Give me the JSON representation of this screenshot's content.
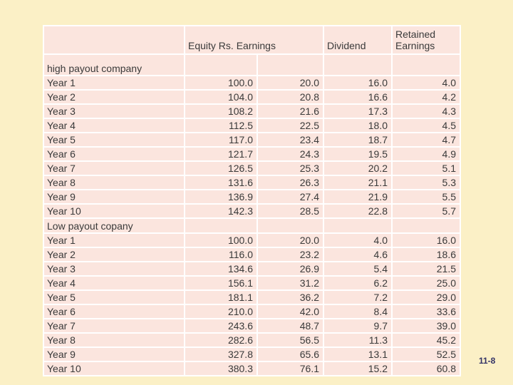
{
  "theme": {
    "slide_background": "#FBF0C6",
    "cell_background": "#FBE5DE",
    "grid_color": "#FFFFFF",
    "text_color": "#3A3A3A",
    "page_number_color": "#333366"
  },
  "footer": {
    "page_number": "11-8"
  },
  "chart_data": {
    "type": "table",
    "headers": [
      "Equity Rs. Earnings",
      "Dividend",
      "Retained Earnings"
    ],
    "layout_hint": "first header spans two value columns; labels left-aligned, numbers right-aligned",
    "sections": [
      {
        "name": "high payout company",
        "rows": [
          {
            "label": "Year 1",
            "values": [
              "100.0",
              "20.0",
              "16.0",
              "4.0"
            ]
          },
          {
            "label": "Year 2",
            "values": [
              "104.0",
              "20.8",
              "16.6",
              "4.2"
            ]
          },
          {
            "label": "Year 3",
            "values": [
              "108.2",
              "21.6",
              "17.3",
              "4.3"
            ]
          },
          {
            "label": "Year 4",
            "values": [
              "112.5",
              "22.5",
              "18.0",
              "4.5"
            ]
          },
          {
            "label": "Year 5",
            "values": [
              "117.0",
              "23.4",
              "18.7",
              "4.7"
            ]
          },
          {
            "label": "Year 6",
            "values": [
              "121.7",
              "24.3",
              "19.5",
              "4.9"
            ]
          },
          {
            "label": "Year 7",
            "values": [
              "126.5",
              "25.3",
              "20.2",
              "5.1"
            ]
          },
          {
            "label": "Year 8",
            "values": [
              "131.6",
              "26.3",
              "21.1",
              "5.3"
            ]
          },
          {
            "label": "Year 9",
            "values": [
              "136.9",
              "27.4",
              "21.9",
              "5.5"
            ]
          },
          {
            "label": "Year 10",
            "values": [
              "142.3",
              "28.5",
              "22.8",
              "5.7"
            ]
          }
        ]
      },
      {
        "name": "Low payout copany",
        "rows": [
          {
            "label": "Year 1",
            "values": [
              "100.0",
              "20.0",
              "4.0",
              "16.0"
            ]
          },
          {
            "label": "Year 2",
            "values": [
              "116.0",
              "23.2",
              "4.6",
              "18.6"
            ]
          },
          {
            "label": "Year 3",
            "values": [
              "134.6",
              "26.9",
              "5.4",
              "21.5"
            ]
          },
          {
            "label": "Year 4",
            "values": [
              "156.1",
              "31.2",
              "6.2",
              "25.0"
            ]
          },
          {
            "label": "Year 5",
            "values": [
              "181.1",
              "36.2",
              "7.2",
              "29.0"
            ]
          },
          {
            "label": "Year 6",
            "values": [
              "210.0",
              "42.0",
              "8.4",
              "33.6"
            ]
          },
          {
            "label": "Year 7",
            "values": [
              "243.6",
              "48.7",
              "9.7",
              "39.0"
            ]
          },
          {
            "label": "Year 8",
            "values": [
              "282.6",
              "56.5",
              "11.3",
              "45.2"
            ]
          },
          {
            "label": "Year 9",
            "values": [
              "327.8",
              "65.6",
              "13.1",
              "52.5"
            ]
          },
          {
            "label": "Year 10",
            "values": [
              "380.3",
              "76.1",
              "15.2",
              "60.8"
            ]
          }
        ]
      }
    ]
  }
}
